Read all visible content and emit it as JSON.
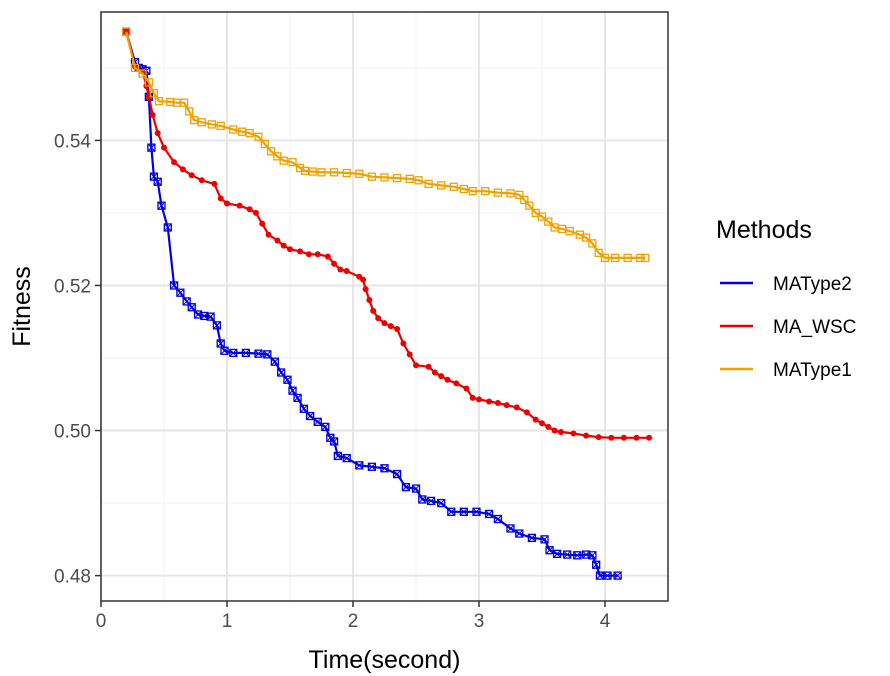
{
  "chart_data": {
    "type": "line",
    "xlabel": "Time(second)",
    "ylabel": "Fitness",
    "xlim": [
      0,
      4.5
    ],
    "ylim": [
      0.4765,
      0.5577
    ],
    "xticks": [
      0,
      1,
      2,
      3,
      4
    ],
    "xtick_labels": [
      "0",
      "1",
      "2",
      "3",
      "4"
    ],
    "yticks": [
      0.48,
      0.5,
      0.52,
      0.54
    ],
    "ytick_labels": [
      "0.48",
      "0.50",
      "0.52",
      "0.54"
    ],
    "grid": true,
    "legend": {
      "title": "Methods",
      "placement": "right",
      "entries": [
        "MAType2",
        "MA_WSC",
        "MAType1"
      ]
    },
    "series": [
      {
        "name": "MAType2",
        "color": "#0000dd",
        "marker": "boxed-x",
        "points": [
          [
            0.2,
            0.555
          ],
          [
            0.27,
            0.5508
          ],
          [
            0.3,
            0.55
          ],
          [
            0.33,
            0.5498
          ],
          [
            0.36,
            0.5496
          ],
          [
            0.38,
            0.546
          ],
          [
            0.4,
            0.539
          ],
          [
            0.42,
            0.535
          ],
          [
            0.45,
            0.5343
          ],
          [
            0.48,
            0.531
          ],
          [
            0.53,
            0.528
          ],
          [
            0.58,
            0.52
          ],
          [
            0.63,
            0.519
          ],
          [
            0.68,
            0.5178
          ],
          [
            0.72,
            0.517
          ],
          [
            0.77,
            0.516
          ],
          [
            0.82,
            0.5158
          ],
          [
            0.87,
            0.5157
          ],
          [
            0.92,
            0.5145
          ],
          [
            0.95,
            0.512
          ],
          [
            0.98,
            0.511
          ],
          [
            1.05,
            0.5107
          ],
          [
            1.15,
            0.5107
          ],
          [
            1.25,
            0.5106
          ],
          [
            1.32,
            0.5105
          ],
          [
            1.38,
            0.5095
          ],
          [
            1.43,
            0.508
          ],
          [
            1.48,
            0.507
          ],
          [
            1.52,
            0.5055
          ],
          [
            1.56,
            0.5045
          ],
          [
            1.61,
            0.503
          ],
          [
            1.66,
            0.502
          ],
          [
            1.72,
            0.5012
          ],
          [
            1.78,
            0.5005
          ],
          [
            1.82,
            0.499
          ],
          [
            1.85,
            0.4985
          ],
          [
            1.88,
            0.4965
          ],
          [
            1.95,
            0.4962
          ],
          [
            2.05,
            0.4952
          ],
          [
            2.15,
            0.495
          ],
          [
            2.25,
            0.4948
          ],
          [
            2.35,
            0.494
          ],
          [
            2.42,
            0.4922
          ],
          [
            2.5,
            0.492
          ],
          [
            2.55,
            0.4905
          ],
          [
            2.62,
            0.4903
          ],
          [
            2.7,
            0.49
          ],
          [
            2.78,
            0.4888
          ],
          [
            2.88,
            0.4888
          ],
          [
            2.98,
            0.4888
          ],
          [
            3.08,
            0.4885
          ],
          [
            3.15,
            0.4878
          ],
          [
            3.25,
            0.4865
          ],
          [
            3.32,
            0.4858
          ],
          [
            3.42,
            0.4852
          ],
          [
            3.52,
            0.485
          ],
          [
            3.56,
            0.4835
          ],
          [
            3.62,
            0.483
          ],
          [
            3.7,
            0.4829
          ],
          [
            3.78,
            0.4828
          ],
          [
            3.85,
            0.4829
          ],
          [
            3.9,
            0.4828
          ],
          [
            3.93,
            0.4815
          ],
          [
            3.96,
            0.48
          ],
          [
            4.02,
            0.48
          ],
          [
            4.1,
            0.48
          ]
        ]
      },
      {
        "name": "MA_WSC",
        "color": "#ee0000",
        "marker": "dot",
        "points": [
          [
            0.2,
            0.555
          ],
          [
            0.27,
            0.5502
          ],
          [
            0.33,
            0.5495
          ],
          [
            0.36,
            0.5475
          ],
          [
            0.38,
            0.546
          ],
          [
            0.41,
            0.5435
          ],
          [
            0.45,
            0.541
          ],
          [
            0.5,
            0.539
          ],
          [
            0.58,
            0.537
          ],
          [
            0.65,
            0.536
          ],
          [
            0.72,
            0.5352
          ],
          [
            0.8,
            0.5345
          ],
          [
            0.9,
            0.534
          ],
          [
            0.95,
            0.532
          ],
          [
            1.0,
            0.5313
          ],
          [
            1.1,
            0.531
          ],
          [
            1.18,
            0.5305
          ],
          [
            1.23,
            0.53
          ],
          [
            1.28,
            0.5285
          ],
          [
            1.33,
            0.527
          ],
          [
            1.4,
            0.5262
          ],
          [
            1.45,
            0.5255
          ],
          [
            1.5,
            0.525
          ],
          [
            1.58,
            0.5247
          ],
          [
            1.65,
            0.5243
          ],
          [
            1.72,
            0.5243
          ],
          [
            1.8,
            0.524
          ],
          [
            1.85,
            0.523
          ],
          [
            1.9,
            0.5222
          ],
          [
            1.95,
            0.522
          ],
          [
            2.05,
            0.5212
          ],
          [
            2.08,
            0.5208
          ],
          [
            2.1,
            0.5195
          ],
          [
            2.13,
            0.518
          ],
          [
            2.16,
            0.5165
          ],
          [
            2.2,
            0.5155
          ],
          [
            2.25,
            0.5148
          ],
          [
            2.3,
            0.5144
          ],
          [
            2.35,
            0.514
          ],
          [
            2.4,
            0.512
          ],
          [
            2.45,
            0.5105
          ],
          [
            2.5,
            0.509
          ],
          [
            2.6,
            0.5088
          ],
          [
            2.65,
            0.508
          ],
          [
            2.7,
            0.5075
          ],
          [
            2.75,
            0.507
          ],
          [
            2.82,
            0.5065
          ],
          [
            2.9,
            0.5058
          ],
          [
            2.95,
            0.5045
          ],
          [
            3.0,
            0.5043
          ],
          [
            3.08,
            0.504
          ],
          [
            3.15,
            0.5038
          ],
          [
            3.22,
            0.5035
          ],
          [
            3.3,
            0.5032
          ],
          [
            3.38,
            0.5025
          ],
          [
            3.45,
            0.5015
          ],
          [
            3.5,
            0.501
          ],
          [
            3.55,
            0.5005
          ],
          [
            3.6,
            0.5
          ],
          [
            3.65,
            0.4998
          ],
          [
            3.75,
            0.4996
          ],
          [
            3.85,
            0.4993
          ],
          [
            3.95,
            0.4991
          ],
          [
            4.05,
            0.499
          ],
          [
            4.15,
            0.499
          ],
          [
            4.25,
            0.499
          ],
          [
            4.35,
            0.499
          ]
        ]
      },
      {
        "name": "MAType1",
        "color": "#f0a000",
        "marker": "square",
        "points": [
          [
            0.2,
            0.555
          ],
          [
            0.27,
            0.55
          ],
          [
            0.33,
            0.5492
          ],
          [
            0.38,
            0.548
          ],
          [
            0.42,
            0.5465
          ],
          [
            0.46,
            0.5454
          ],
          [
            0.55,
            0.5453
          ],
          [
            0.6,
            0.5452
          ],
          [
            0.66,
            0.5452
          ],
          [
            0.7,
            0.544
          ],
          [
            0.74,
            0.5428
          ],
          [
            0.8,
            0.5425
          ],
          [
            0.88,
            0.5422
          ],
          [
            0.95,
            0.542
          ],
          [
            1.05,
            0.5415
          ],
          [
            1.12,
            0.5412
          ],
          [
            1.18,
            0.541
          ],
          [
            1.25,
            0.5405
          ],
          [
            1.3,
            0.5395
          ],
          [
            1.35,
            0.5385
          ],
          [
            1.4,
            0.5378
          ],
          [
            1.45,
            0.5372
          ],
          [
            1.52,
            0.537
          ],
          [
            1.58,
            0.5362
          ],
          [
            1.62,
            0.5358
          ],
          [
            1.68,
            0.5357
          ],
          [
            1.75,
            0.5356
          ],
          [
            1.85,
            0.5356
          ],
          [
            1.95,
            0.5355
          ],
          [
            2.05,
            0.5354
          ],
          [
            2.15,
            0.535
          ],
          [
            2.25,
            0.5349
          ],
          [
            2.35,
            0.5348
          ],
          [
            2.45,
            0.5347
          ],
          [
            2.52,
            0.5345
          ],
          [
            2.6,
            0.534
          ],
          [
            2.7,
            0.5338
          ],
          [
            2.8,
            0.5336
          ],
          [
            2.88,
            0.5333
          ],
          [
            2.95,
            0.533
          ],
          [
            3.05,
            0.533
          ],
          [
            3.15,
            0.5328
          ],
          [
            3.25,
            0.5327
          ],
          [
            3.32,
            0.5325
          ],
          [
            3.36,
            0.5318
          ],
          [
            3.4,
            0.531
          ],
          [
            3.45,
            0.53
          ],
          [
            3.5,
            0.5295
          ],
          [
            3.55,
            0.5288
          ],
          [
            3.6,
            0.528
          ],
          [
            3.66,
            0.5278
          ],
          [
            3.72,
            0.5275
          ],
          [
            3.8,
            0.527
          ],
          [
            3.85,
            0.5266
          ],
          [
            3.9,
            0.5258
          ],
          [
            3.95,
            0.5245
          ],
          [
            4.0,
            0.5238
          ],
          [
            4.08,
            0.5238
          ],
          [
            4.18,
            0.5238
          ],
          [
            4.28,
            0.5238
          ],
          [
            4.32,
            0.5238
          ]
        ]
      }
    ]
  }
}
